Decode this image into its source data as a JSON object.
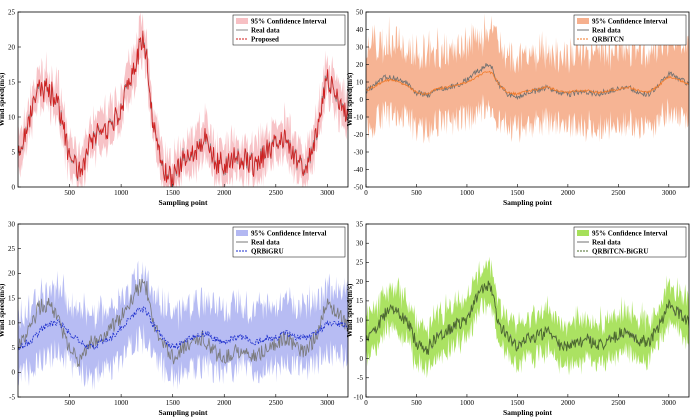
{
  "chart_data": [
    {
      "type": "line",
      "subplot": "top-left",
      "xlabel": "Sampling point",
      "ylabel": "Wind speed(m/s)",
      "xlim": [
        0,
        3200
      ],
      "ylim": [
        0,
        25
      ],
      "xticks": [
        500,
        1000,
        1500,
        2000,
        2500,
        3000
      ],
      "yticks": [
        0,
        5,
        10,
        15,
        20,
        25
      ],
      "legend_position": "top-right",
      "legend": [
        "95% Confidence Interval",
        "Real data",
        "Proposed"
      ],
      "band_color": "#f7c0c4",
      "prediction_color": "#d11f1f",
      "real_color": "#8a8a8a",
      "series": [
        {
          "name": "Real data",
          "x": [
            0,
            100,
            200,
            300,
            400,
            500,
            600,
            700,
            800,
            900,
            1000,
            1100,
            1200,
            1250,
            1300,
            1400,
            1500,
            1600,
            1700,
            1800,
            1900,
            2000,
            2100,
            2200,
            2300,
            2400,
            2500,
            2600,
            2700,
            2800,
            2900,
            3000,
            3100,
            3200
          ],
          "values": [
            5,
            9,
            14,
            14,
            11,
            4,
            2,
            6,
            8,
            9,
            11,
            16,
            21,
            19,
            10,
            3,
            1,
            4,
            5,
            7,
            4,
            3,
            4,
            4,
            3,
            5,
            6,
            7,
            4,
            3,
            8,
            16,
            13,
            9
          ]
        },
        {
          "name": "Proposed",
          "x": [
            0,
            100,
            200,
            300,
            400,
            500,
            600,
            700,
            800,
            900,
            1000,
            1100,
            1200,
            1250,
            1300,
            1400,
            1500,
            1600,
            1700,
            1800,
            1900,
            2000,
            2100,
            2200,
            2300,
            2400,
            2500,
            2600,
            2700,
            2800,
            2900,
            3000,
            3100,
            3200
          ],
          "values": [
            5,
            9,
            14,
            14,
            11,
            4,
            2,
            6,
            8,
            9,
            11,
            16,
            21,
            19,
            10,
            3,
            1,
            4,
            5,
            7,
            4,
            3,
            4,
            4,
            3,
            5,
            6,
            7,
            4,
            3,
            8,
            16,
            13,
            9
          ],
          "band_halfwidth": 2.5
        }
      ]
    },
    {
      "type": "line",
      "subplot": "top-right",
      "xlabel": "Sampling point",
      "ylabel": "Wind speed(m/s)",
      "xlim": [
        0,
        3200
      ],
      "ylim": [
        -50,
        50
      ],
      "xticks": [
        0,
        500,
        1000,
        1500,
        2000,
        2500,
        3000
      ],
      "yticks": [
        -50,
        -40,
        -30,
        -20,
        -10,
        0,
        10,
        20,
        30,
        40,
        50
      ],
      "legend_position": "top-right",
      "legend": [
        "95% Confidence Interval",
        "Real data",
        "QRBiTCN"
      ],
      "band_color": "#f6b08e",
      "prediction_color": "#f07a2a",
      "real_color": "#707070",
      "series": [
        {
          "name": "Real data",
          "x": [
            0,
            100,
            200,
            300,
            400,
            500,
            600,
            700,
            800,
            900,
            1000,
            1100,
            1200,
            1250,
            1300,
            1400,
            1500,
            1600,
            1700,
            1800,
            1900,
            2000,
            2100,
            2200,
            2300,
            2400,
            2500,
            2600,
            2700,
            2800,
            2900,
            3000,
            3100,
            3200
          ],
          "values": [
            5,
            9,
            13,
            12,
            9,
            4,
            2,
            6,
            7,
            8,
            11,
            16,
            20,
            18,
            10,
            3,
            1,
            4,
            5,
            7,
            4,
            3,
            4,
            4,
            3,
            5,
            6,
            7,
            4,
            3,
            8,
            15,
            12,
            9
          ]
        },
        {
          "name": "QRBiTCN",
          "x": [
            0,
            100,
            200,
            300,
            400,
            500,
            600,
            700,
            800,
            900,
            1000,
            1100,
            1200,
            1250,
            1300,
            1400,
            1500,
            1600,
            1700,
            1800,
            1900,
            2000,
            2100,
            2200,
            2300,
            2400,
            2500,
            2600,
            2700,
            2800,
            2900,
            3000,
            3100,
            3200
          ],
          "values": [
            5,
            8,
            11,
            11,
            8,
            4,
            3,
            6,
            7,
            8,
            10,
            13,
            16,
            15,
            10,
            4,
            3,
            5,
            6,
            7,
            5,
            4,
            5,
            5,
            4,
            5,
            6,
            7,
            5,
            4,
            8,
            13,
            11,
            9
          ],
          "band_halfwidth": 20
        }
      ]
    },
    {
      "type": "line",
      "subplot": "bottom-left",
      "xlabel": "Sampling point",
      "ylabel": "Wind speed(m/s)",
      "xlim": [
        0,
        3200
      ],
      "ylim": [
        -5,
        30
      ],
      "xticks": [
        500,
        1000,
        1500,
        2000,
        2500,
        3000
      ],
      "yticks": [
        -5,
        0,
        5,
        10,
        15,
        20,
        25,
        30
      ],
      "legend_position": "top-right",
      "legend": [
        "95% Confidence Interval",
        "Real data",
        "QRBiGRU"
      ],
      "band_color": "#b3b8f2",
      "prediction_color": "#1a2ccc",
      "real_color": "#7a7a7a",
      "series": [
        {
          "name": "Real data",
          "x": [
            0,
            100,
            200,
            300,
            400,
            500,
            600,
            700,
            800,
            900,
            1000,
            1100,
            1200,
            1250,
            1300,
            1400,
            1500,
            1600,
            1700,
            1800,
            1900,
            2000,
            2100,
            2200,
            2300,
            2400,
            2500,
            2600,
            2700,
            2800,
            2900,
            3000,
            3100,
            3200
          ],
          "values": [
            5,
            8,
            13,
            14,
            10,
            5,
            2,
            6,
            7,
            9,
            11,
            15,
            18,
            17,
            10,
            6,
            3,
            5,
            6,
            7,
            4,
            3,
            4,
            5,
            3,
            5,
            6,
            7,
            5,
            4,
            8,
            14,
            12,
            9
          ]
        },
        {
          "name": "QRBiGRU",
          "x": [
            0,
            100,
            200,
            300,
            400,
            500,
            600,
            700,
            800,
            900,
            1000,
            1100,
            1200,
            1250,
            1300,
            1400,
            1500,
            1600,
            1700,
            1800,
            1900,
            2000,
            2100,
            2200,
            2300,
            2400,
            2500,
            2600,
            2700,
            2800,
            2900,
            3000,
            3100,
            3200
          ],
          "values": [
            5,
            6,
            8,
            10,
            10,
            8,
            6,
            5,
            6,
            7,
            9,
            11,
            13,
            12,
            10,
            7,
            5,
            6,
            7,
            8,
            7,
            6,
            7,
            7,
            6,
            7,
            7,
            8,
            7,
            7,
            8,
            10,
            10,
            9
          ],
          "band_halfwidth": 6
        }
      ]
    },
    {
      "type": "line",
      "subplot": "bottom-right",
      "xlabel": "Sampling point",
      "ylabel": "Wind speed(m/s)",
      "xlim": [
        0,
        3200
      ],
      "ylim": [
        -10,
        35
      ],
      "xticks": [
        0,
        500,
        1000,
        1500,
        2000,
        2500,
        3000
      ],
      "yticks": [
        -10,
        -5,
        0,
        5,
        10,
        15,
        20,
        25,
        30,
        35
      ],
      "legend_position": "top-right",
      "legend": [
        "95% Confidence Interval",
        "Real data",
        "QRBiTCN-BiGRU"
      ],
      "band_color": "#a6e05a",
      "prediction_color": "#4a6b2a",
      "real_color": "#707070",
      "series": [
        {
          "name": "Real data",
          "x": [
            0,
            100,
            200,
            300,
            400,
            500,
            600,
            700,
            800,
            900,
            1000,
            1100,
            1200,
            1250,
            1300,
            1400,
            1500,
            1600,
            1700,
            1800,
            1900,
            2000,
            2100,
            2200,
            2300,
            2400,
            2500,
            2600,
            2700,
            2800,
            2900,
            3000,
            3100,
            3200
          ],
          "values": [
            5,
            8,
            12,
            13,
            10,
            4,
            2,
            6,
            7,
            9,
            10,
            16,
            19,
            18,
            10,
            6,
            3,
            5,
            6,
            7,
            4,
            3,
            4,
            5,
            3,
            5,
            6,
            7,
            5,
            4,
            8,
            14,
            12,
            9
          ]
        },
        {
          "name": "QRBiTCN-BiGRU",
          "x": [
            0,
            100,
            200,
            300,
            400,
            500,
            600,
            700,
            800,
            900,
            1000,
            1100,
            1200,
            1250,
            1300,
            1400,
            1500,
            1600,
            1700,
            1800,
            1900,
            2000,
            2100,
            2200,
            2300,
            2400,
            2500,
            2600,
            2700,
            2800,
            2900,
            3000,
            3100,
            3200
          ],
          "values": [
            5,
            8,
            12,
            13,
            10,
            4,
            2,
            6,
            7,
            9,
            10,
            16,
            19,
            18,
            10,
            6,
            3,
            5,
            6,
            7,
            4,
            3,
            4,
            5,
            3,
            5,
            6,
            7,
            5,
            4,
            8,
            14,
            12,
            9
          ],
          "band_halfwidth": 5
        }
      ]
    }
  ]
}
